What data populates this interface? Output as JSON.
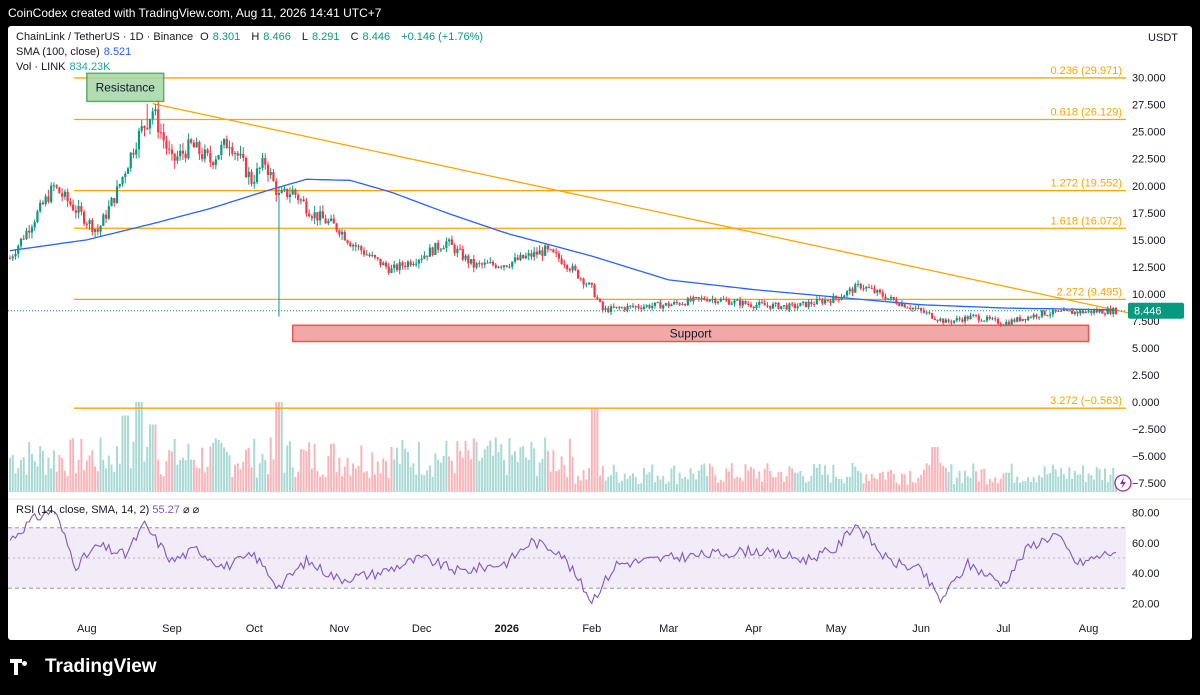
{
  "header": {
    "credit": "CoinCodex created with TradingView.com, Aug 11, 2026 14:41 UTC+7"
  },
  "legend": {
    "symbol": "ChainLink / TetherUS · 1D · Binance",
    "o_label": "O",
    "o_value": "8.301",
    "h_label": "H",
    "h_value": "8.466",
    "l_label": "L",
    "l_value": "8.291",
    "c_label": "C",
    "c_value": "8.446",
    "change": "+0.146 (+1.76%)",
    "sma_label": "SMA (100, close)",
    "sma_value": "8.521",
    "vol_label": "Vol · LINK",
    "vol_value": "834.23K"
  },
  "currency": "USDT",
  "rsi_legend": {
    "label": "RSI (14, close, SMA, 14, 2)",
    "value": "55.27",
    "symbol": "⌀ ⌀"
  },
  "brand": {
    "name": "TradingView"
  },
  "colors": {
    "up": "#089981",
    "down": "#f23645",
    "sma": "#2962ff",
    "fib": "#f7a600",
    "trend": "#f7a600",
    "rsi": "#7e57c2",
    "resistance_fill": "#a5d6a7",
    "support_fill": "#ef9a9a"
  },
  "icons": [
    "tradingview-logo-icon",
    "lightning-icon"
  ],
  "chart_data": {
    "type": "candlestick",
    "price_axis": {
      "ticks": [
        "30.000",
        "27.500",
        "25.000",
        "22.500",
        "20.000",
        "17.500",
        "15.000",
        "12.500",
        "10.000",
        "7.500",
        "5.000",
        "2.500",
        "0.000",
        "−2.500",
        "−5.000",
        "−7.500"
      ],
      "tick_values": [
        30,
        27.5,
        25,
        22.5,
        20,
        17.5,
        15,
        12.5,
        10,
        7.5,
        5,
        2.5,
        0,
        -2.5,
        -5,
        -7.5
      ],
      "range": [
        -8.5,
        32
      ]
    },
    "time_axis": {
      "labels": [
        "Aug",
        "Sep",
        "Oct",
        "Nov",
        "Dec",
        "2026",
        "Feb",
        "Mar",
        "Apr",
        "May",
        "Jun",
        "Jul",
        "Aug"
      ]
    },
    "last_price": "8.446",
    "fib_levels": [
      {
        "label": "0.236 (29.971)",
        "value": 29.971
      },
      {
        "label": "0.618 (26.129)",
        "value": 26.129
      },
      {
        "label": "1.272 (19.552)",
        "value": 19.552
      },
      {
        "label": "1.618 (16.072)",
        "value": 16.072
      },
      {
        "label": "2.272 (9.495)",
        "value": 9.495
      },
      {
        "label": "3.272 (−0.563)",
        "value": -0.563
      }
    ],
    "zones": [
      {
        "label": "Resistance",
        "low": 27.8,
        "high": 30.4,
        "start": "2025-08-01",
        "end": "2025-08-29"
      },
      {
        "label": "Support",
        "low": 5.6,
        "high": 7.1,
        "start": "2025-10-15",
        "end": "2026-08-01"
      }
    ],
    "trendline": {
      "start_date": "2025-08-25",
      "start_value": 27.6,
      "end_date": "2026-08-11",
      "end_value": 8.2
    },
    "price_path": [
      [
        "2025-07-04",
        13.3
      ],
      [
        "2025-07-20",
        19.9
      ],
      [
        "2025-07-28",
        17.8
      ],
      [
        "2025-08-05",
        15.8
      ],
      [
        "2025-08-12",
        19.5
      ],
      [
        "2025-08-19",
        24.2
      ],
      [
        "2025-08-25",
        27.0
      ],
      [
        "2025-09-01",
        22.2
      ],
      [
        "2025-09-08",
        23.7
      ],
      [
        "2025-09-15",
        22.3
      ],
      [
        "2025-09-22",
        24.2
      ],
      [
        "2025-09-30",
        20.5
      ],
      [
        "2025-10-05",
        22.2
      ],
      [
        "2025-10-10",
        19.0
      ],
      [
        "2025-10-15",
        19.5
      ],
      [
        "2025-10-22",
        17.5
      ],
      [
        "2025-11-01",
        16.0
      ],
      [
        "2025-11-05",
        14.8
      ],
      [
        "2025-11-12",
        13.5
      ],
      [
        "2025-11-20",
        12.2
      ],
      [
        "2025-12-01",
        13.5
      ],
      [
        "2025-12-10",
        14.8
      ],
      [
        "2025-12-20",
        12.6
      ],
      [
        "2026-01-01",
        12.8
      ],
      [
        "2026-01-15",
        14.0
      ],
      [
        "2026-01-22",
        13.0
      ],
      [
        "2026-02-01",
        10.5
      ],
      [
        "2026-02-05",
        8.5
      ],
      [
        "2026-02-15",
        8.8
      ],
      [
        "2026-03-01",
        9.0
      ],
      [
        "2026-03-15",
        9.6
      ],
      [
        "2026-04-01",
        9.0
      ],
      [
        "2026-04-15",
        8.8
      ],
      [
        "2026-05-01",
        9.6
      ],
      [
        "2026-05-10",
        10.8
      ],
      [
        "2026-05-20",
        9.6
      ],
      [
        "2026-06-01",
        8.4
      ],
      [
        "2026-06-10",
        7.4
      ],
      [
        "2026-06-20",
        7.9
      ],
      [
        "2026-07-01",
        7.3
      ],
      [
        "2026-07-15",
        8.2
      ],
      [
        "2026-08-11",
        8.45
      ]
    ],
    "sma_path": [
      [
        "2025-07-04",
        14.0
      ],
      [
        "2025-08-01",
        15.0
      ],
      [
        "2025-08-25",
        16.5
      ],
      [
        "2025-09-15",
        17.9
      ],
      [
        "2025-10-05",
        19.5
      ],
      [
        "2025-10-20",
        20.6
      ],
      [
        "2025-11-05",
        20.5
      ],
      [
        "2025-11-20",
        19.4
      ],
      [
        "2025-12-10",
        17.5
      ],
      [
        "2026-01-01",
        15.6
      ],
      [
        "2026-02-01",
        13.5
      ],
      [
        "2026-03-01",
        11.3
      ],
      [
        "2026-04-01",
        10.4
      ],
      [
        "2026-05-01",
        9.7
      ],
      [
        "2026-06-01",
        9.0
      ],
      [
        "2026-07-01",
        8.7
      ],
      [
        "2026-08-11",
        8.52
      ]
    ],
    "rsi": {
      "axis_ticks": [
        "80.00",
        "60.00",
        "40.00",
        "20.00"
      ],
      "tick_values": [
        80,
        60,
        40,
        20
      ],
      "bands": [
        70,
        30
      ],
      "range": [
        13,
        87
      ],
      "path": [
        [
          "2025-07-04",
          62
        ],
        [
          "2025-07-12",
          75
        ],
        [
          "2025-07-20",
          82
        ],
        [
          "2025-07-28",
          45
        ],
        [
          "2025-08-05",
          58
        ],
        [
          "2025-08-15",
          52
        ],
        [
          "2025-08-22",
          72
        ],
        [
          "2025-09-01",
          48
        ],
        [
          "2025-09-10",
          56
        ],
        [
          "2025-09-20",
          44
        ],
        [
          "2025-10-01",
          52
        ],
        [
          "2025-10-10",
          31
        ],
        [
          "2025-10-20",
          48
        ],
        [
          "2025-11-01",
          36
        ],
        [
          "2025-11-15",
          40
        ],
        [
          "2025-12-01",
          50
        ],
        [
          "2025-12-15",
          41
        ],
        [
          "2026-01-01",
          47
        ],
        [
          "2026-01-10",
          61
        ],
        [
          "2026-01-20",
          55
        ],
        [
          "2026-02-01",
          22
        ],
        [
          "2026-02-10",
          46
        ],
        [
          "2026-03-01",
          50
        ],
        [
          "2026-04-01",
          55
        ],
        [
          "2026-04-20",
          49
        ],
        [
          "2026-05-01",
          56
        ],
        [
          "2026-05-08",
          73
        ],
        [
          "2026-05-20",
          48
        ],
        [
          "2026-06-01",
          42
        ],
        [
          "2026-06-08",
          22
        ],
        [
          "2026-06-18",
          46
        ],
        [
          "2026-07-01",
          33
        ],
        [
          "2026-07-10",
          57
        ],
        [
          "2026-07-20",
          66
        ],
        [
          "2026-07-28",
          46
        ],
        [
          "2026-08-11",
          55
        ]
      ]
    },
    "volume_spikes": [
      [
        "2025-08-15",
        0.85
      ],
      [
        "2025-08-20",
        1.0
      ],
      [
        "2025-08-25",
        0.75
      ],
      [
        "2025-10-10",
        1.0
      ],
      [
        "2026-02-02",
        0.92
      ],
      [
        "2026-06-06",
        0.5
      ]
    ]
  }
}
